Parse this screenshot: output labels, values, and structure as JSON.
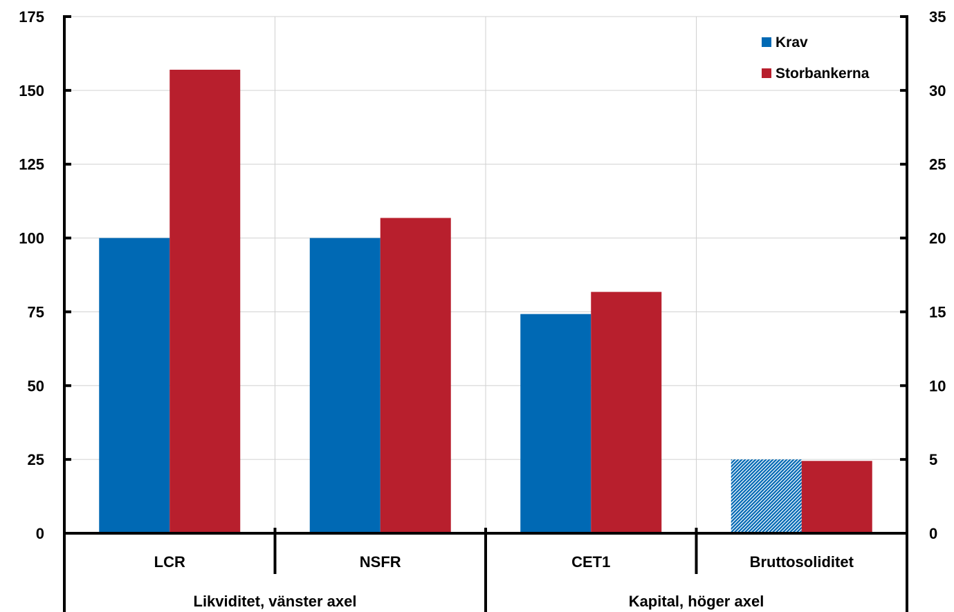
{
  "chart_data": {
    "type": "bar",
    "categories": [
      "LCR",
      "NSFR",
      "CET1",
      "Bruttosoliditet"
    ],
    "groups": [
      {
        "label": "Likviditet, vänster axel",
        "categories": [
          "LCR",
          "NSFR"
        ],
        "axis": "left"
      },
      {
        "label": "Kapital, höger axel",
        "categories": [
          "CET1",
          "Bruttosoliditet"
        ],
        "axis": "right"
      }
    ],
    "series": [
      {
        "name": "Krav",
        "color": "#0069b4",
        "values": [
          100,
          100,
          14.85,
          5.0
        ],
        "hatched": [
          false,
          false,
          false,
          true
        ]
      },
      {
        "name": "Storbankerna",
        "color": "#b81f2d",
        "values": [
          157,
          106.8,
          16.35,
          4.9
        ],
        "hatched": [
          false,
          false,
          false,
          false
        ]
      }
    ],
    "value_axis_per_category": [
      "left",
      "left",
      "right",
      "right"
    ],
    "left_axis": {
      "ylim": [
        0,
        175
      ],
      "ticks": [
        "0",
        "25",
        "50",
        "75",
        "100",
        "125",
        "150",
        "175"
      ]
    },
    "right_axis": {
      "ylim": [
        0,
        35
      ],
      "ticks": [
        "0",
        "5",
        "10",
        "15",
        "20",
        "25",
        "30",
        "35"
      ]
    },
    "grid": true,
    "legend_position": "top-right"
  }
}
